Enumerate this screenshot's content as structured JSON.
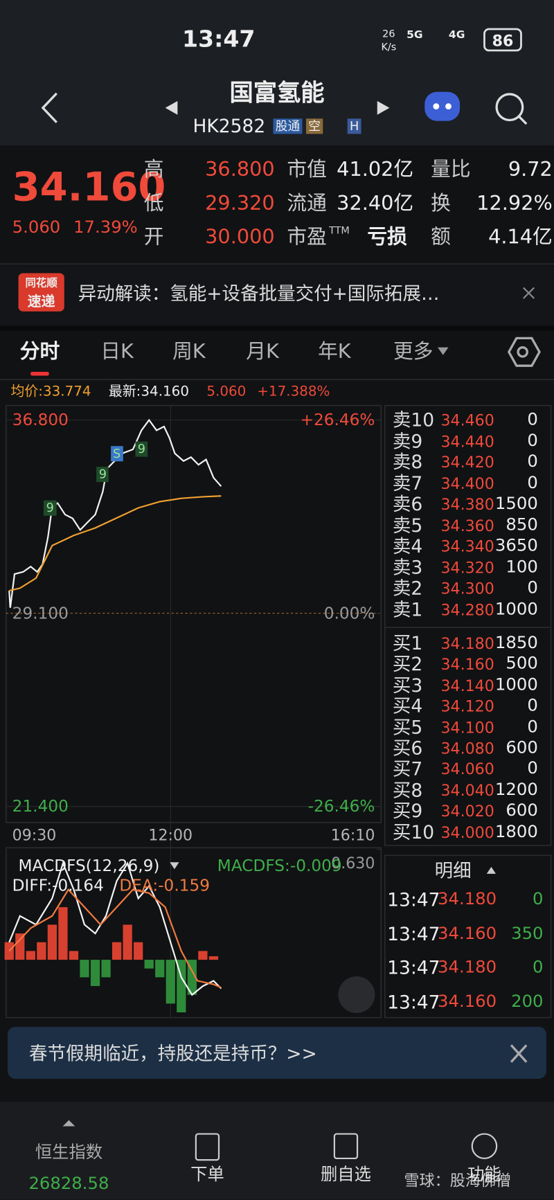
{
  "status_bar": {
    "time": "13:47",
    "net_speed_value": "26",
    "net_speed_unit": "K/s",
    "signal_1": "5G",
    "signal_2": "4G",
    "battery": "86"
  },
  "header": {
    "title": "国富氢能",
    "code": "HK2582",
    "badges": [
      "股通",
      "空",
      "H"
    ]
  },
  "quote": {
    "price": "34.160",
    "change": "5.060",
    "change_pct": "17.39%",
    "stats": [
      {
        "label": "高",
        "value": "36.800"
      },
      {
        "label": "市值",
        "value": "41.02亿"
      },
      {
        "label": "量比",
        "value": "9.72"
      },
      {
        "label": "低",
        "value": "29.320"
      },
      {
        "label": "流通",
        "value": "32.40亿"
      },
      {
        "label": "换",
        "value": "12.92%"
      },
      {
        "label": "开",
        "value": "30.000"
      },
      {
        "label": "市盈",
        "label_sup": "TTM",
        "value": "亏损"
      },
      {
        "label": "额",
        "value": "4.14亿"
      }
    ]
  },
  "news": {
    "logo_top": "同花顺",
    "logo_bottom": "速递",
    "text": "异动解读：氢能+设备批量交付+国际拓展…"
  },
  "tabs": [
    "分时",
    "日K",
    "周K",
    "月K",
    "年K",
    "更多"
  ],
  "info": {
    "avg": "均价:33.774",
    "latest": "最新:34.160",
    "change": "5.060",
    "change_pct": "+17.388%"
  },
  "chart_data": [
    {
      "type": "line",
      "xlim": [
        0,
        340
      ],
      "xticks": [
        {
          "value": 0,
          "label": "09:30"
        },
        {
          "value": 150,
          "label": "12:00"
        },
        {
          "value": 340,
          "label": "16:10"
        }
      ],
      "ylim": [
        21.4,
        36.8
      ],
      "yticks": [
        {
          "value": 36.8,
          "label": "36.800"
        },
        {
          "value": 29.1,
          "label": "29.100"
        },
        {
          "value": 21.4,
          "label": "21.400"
        }
      ],
      "y2lim": [
        -26.46,
        26.46
      ],
      "y2ticks": [
        {
          "value": 26.46,
          "label": "+26.46%"
        },
        {
          "value": 0,
          "label": "0.00%"
        },
        {
          "value": -26.46,
          "label": "-26.46%"
        }
      ],
      "grid": true,
      "series": [
        {
          "color": "#f2f2f2",
          "x": [
            0,
            1,
            5,
            13,
            20,
            26,
            31,
            36,
            40,
            45,
            52,
            59,
            66,
            73,
            80,
            87,
            91,
            98,
            105,
            115,
            123,
            130,
            137,
            144,
            149,
            154,
            162,
            169,
            176,
            183,
            190,
            197
          ],
          "values": [
            30.0,
            29.32,
            30.66,
            30.75,
            30.96,
            30.75,
            31.05,
            32.12,
            33.34,
            33.49,
            33.03,
            32.88,
            32.42,
            32.73,
            33.03,
            33.95,
            34.86,
            35.17,
            35.47,
            35.63,
            36.39,
            36.8,
            36.39,
            36.54,
            36.08,
            35.47,
            35.17,
            35.32,
            35.02,
            35.23,
            34.5,
            34.16
          ]
        },
        {
          "color": "#f0a030",
          "x": [
            0,
            10,
            25,
            40,
            60,
            80,
            100,
            120,
            140,
            160,
            180,
            197
          ],
          "values": [
            30.0,
            30.1,
            30.5,
            31.8,
            32.2,
            32.5,
            32.9,
            33.3,
            33.55,
            33.68,
            33.74,
            33.774
          ]
        }
      ],
      "annotations": [
        {
          "text": "9",
          "x": 38,
          "y": 33.28
        },
        {
          "text": "9",
          "x": 87,
          "y": 34.65
        },
        {
          "text": "S",
          "x": 100,
          "y": 35.47
        },
        {
          "text": "9",
          "x": 123,
          "y": 35.63
        }
      ]
    },
    {
      "type": "macd",
      "indicator": "MACDFS(12,26,9)",
      "macdfs_label": "MACDFS:-0.009",
      "diff_label": "DIFF:-0.164",
      "dea_label": "DEA:-0.159",
      "xlim": [
        0,
        340
      ],
      "ylim": [
        -0.33,
        0.63
      ],
      "yticks": [
        {
          "value": 0.63,
          "label": "0.630"
        }
      ],
      "series": [
        {
          "color": "#f2f2f2",
          "x": [
            0,
            10,
            25,
            40,
            50,
            60,
            70,
            80,
            90,
            100,
            110,
            120,
            130,
            140,
            150,
            160,
            170,
            180,
            190,
            197
          ],
          "values": [
            0.1,
            0.25,
            0.2,
            0.35,
            0.55,
            0.4,
            0.2,
            0.15,
            0.25,
            0.45,
            0.55,
            0.35,
            0.42,
            0.3,
            0.1,
            -0.1,
            -0.2,
            -0.15,
            -0.12,
            -0.164
          ]
        },
        {
          "color": "#f07a40",
          "x": [
            0,
            20,
            40,
            55,
            70,
            85,
            100,
            115,
            130,
            145,
            160,
            175,
            190,
            197
          ],
          "values": [
            0.05,
            0.18,
            0.25,
            0.4,
            0.3,
            0.2,
            0.3,
            0.4,
            0.38,
            0.3,
            0.05,
            -0.12,
            -0.14,
            -0.159
          ]
        }
      ],
      "histogram": {
        "up_color": "#d8412f",
        "down_color": "#2e8b3a",
        "x": [
          0,
          10,
          20,
          30,
          40,
          50,
          60,
          70,
          80,
          90,
          100,
          110,
          120,
          130,
          140,
          150,
          160,
          170,
          180,
          190
        ],
        "values": [
          0.1,
          0.15,
          0.05,
          0.1,
          0.2,
          0.3,
          0.05,
          -0.1,
          -0.15,
          -0.1,
          0.1,
          0.2,
          0.1,
          -0.05,
          -0.1,
          -0.25,
          -0.3,
          -0.2,
          0.05,
          0.02
        ]
      }
    }
  ],
  "order_book": {
    "asks": [
      {
        "label": "卖10",
        "price": "34.460",
        "volume": "0"
      },
      {
        "label": "卖9",
        "price": "34.440",
        "volume": "0"
      },
      {
        "label": "卖8",
        "price": "34.420",
        "volume": "0"
      },
      {
        "label": "卖7",
        "price": "34.400",
        "volume": "0"
      },
      {
        "label": "卖6",
        "price": "34.380",
        "volume": "1500"
      },
      {
        "label": "卖5",
        "price": "34.360",
        "volume": "850"
      },
      {
        "label": "卖4",
        "price": "34.340",
        "volume": "3650"
      },
      {
        "label": "卖3",
        "price": "34.320",
        "volume": "100"
      },
      {
        "label": "卖2",
        "price": "34.300",
        "volume": "0"
      },
      {
        "label": "卖1",
        "price": "34.280",
        "volume": "1000"
      }
    ],
    "bids": [
      {
        "label": "买1",
        "price": "34.180",
        "volume": "1850"
      },
      {
        "label": "买2",
        "price": "34.160",
        "volume": "500"
      },
      {
        "label": "买3",
        "price": "34.140",
        "volume": "1000"
      },
      {
        "label": "买4",
        "price": "34.120",
        "volume": "0"
      },
      {
        "label": "买5",
        "price": "34.100",
        "volume": "0"
      },
      {
        "label": "买6",
        "price": "34.080",
        "volume": "600"
      },
      {
        "label": "买7",
        "price": "34.060",
        "volume": "0"
      },
      {
        "label": "买8",
        "price": "34.040",
        "volume": "1200"
      },
      {
        "label": "买9",
        "price": "34.020",
        "volume": "600"
      },
      {
        "label": "买10",
        "price": "34.000",
        "volume": "1800"
      }
    ]
  },
  "ticks": {
    "title": "明细",
    "rows": [
      {
        "time": "13:47",
        "price": "34.180",
        "volume": "0"
      },
      {
        "time": "13:47",
        "price": "34.160",
        "volume": "350"
      },
      {
        "time": "13:47",
        "price": "34.180",
        "volume": "0"
      },
      {
        "time": "13:47",
        "price": "34.160",
        "volume": "200"
      }
    ]
  },
  "promo": {
    "text": "春节假期临近，持股还是持币？>>"
  },
  "nav": {
    "index_name": "恒生指数",
    "index_value": "26828.58",
    "items": [
      "下单",
      "删自选",
      "功能"
    ]
  },
  "watermark": "雪球：股海佛僧"
}
